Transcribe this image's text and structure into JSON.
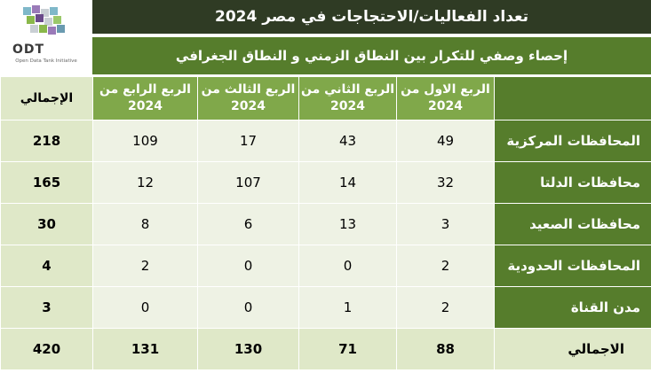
{
  "logo": {
    "name": "ODT",
    "tagline": "Open Data Tank Initiative"
  },
  "colors": {
    "title_bg": "#2f3b24",
    "header_green": "#567d2c",
    "quarter_header": "#80a84a",
    "total_bg": "#dfe8c8",
    "cell_bg": "#eef2e4"
  },
  "chart_data": {
    "type": "table",
    "title": "تعداد الفعاليات/الاحتجاجات في مصر 2024",
    "subtitle": "إحصاء وصفي للتكرار بين النطاق الزمني و النطاق الجغرافي",
    "columns": [
      "الربع الاول من 2024",
      "الربع الثاني من 2024",
      "الربع الثالث من 2024",
      "الربع الرابع من 2024",
      "الإجمالي"
    ],
    "rows": [
      {
        "label": "المحافظات المركزية",
        "values": [
          "49",
          "43",
          "17",
          "109"
        ],
        "total": "218"
      },
      {
        "label": "محافظات الدلتا",
        "values": [
          "32",
          "14",
          "107",
          "12"
        ],
        "total": "165"
      },
      {
        "label": "محافظات الصعيد",
        "values": [
          "3",
          "13",
          "6",
          "8"
        ],
        "total": "30"
      },
      {
        "label": "المحافظات الحدودية",
        "values": [
          "2",
          "0",
          "0",
          "2"
        ],
        "total": "4"
      },
      {
        "label": "مدن القناة",
        "values": [
          "2",
          "1",
          "0",
          "0"
        ],
        "total": "3"
      }
    ],
    "total_row": {
      "label": "الاجمالي",
      "values": [
        "88",
        "71",
        "130",
        "131"
      ],
      "total": "420"
    }
  }
}
